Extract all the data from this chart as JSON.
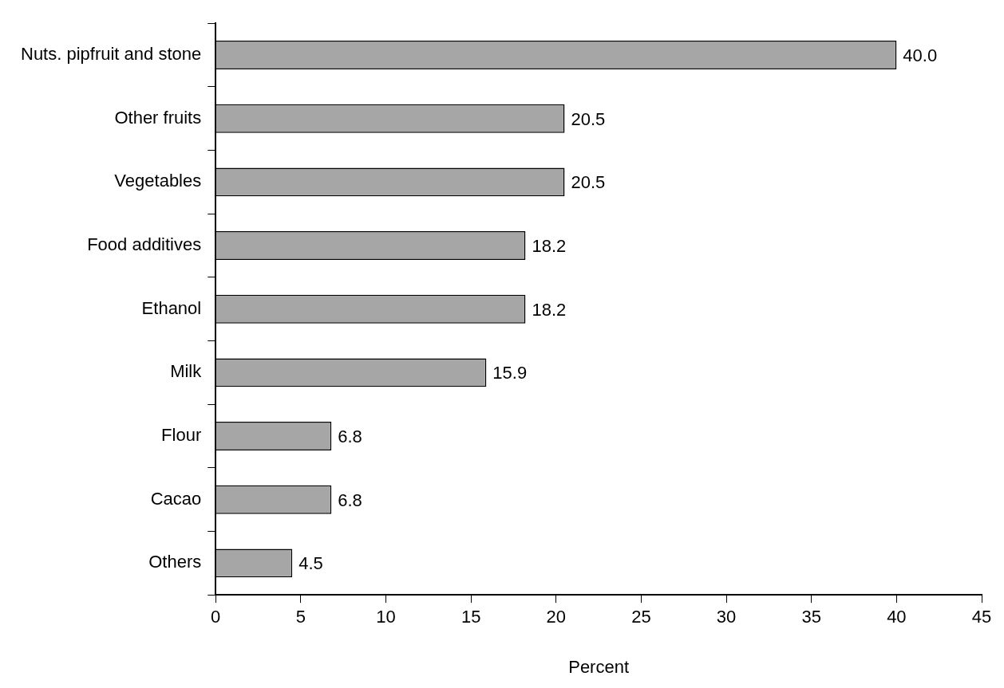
{
  "chart_data": {
    "type": "bar",
    "orientation": "horizontal",
    "xlabel": "Percent",
    "categories": [
      "Nuts. pipfruit and stone",
      "Other fruits",
      "Vegetables",
      "Food additives",
      "Ethanol",
      "Milk",
      "Flour",
      "Cacao",
      "Others"
    ],
    "values": [
      40.0,
      20.5,
      20.5,
      18.2,
      18.2,
      15.9,
      6.8,
      6.8,
      4.5
    ],
    "value_labels": [
      "40.0",
      "20.5",
      "20.5",
      "18.2",
      "18.2",
      "15.9",
      "6.8",
      "6.8",
      "4.5"
    ],
    "color": "#a6a6a6",
    "xlim": [
      0,
      45
    ],
    "xticks": [
      0,
      5,
      10,
      15,
      20,
      25,
      30,
      35,
      40,
      45
    ],
    "grid": false,
    "legend": false
  }
}
